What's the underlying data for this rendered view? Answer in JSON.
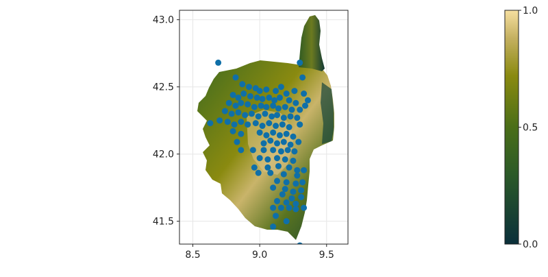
{
  "chart_data": {
    "type": "scatter",
    "title": "",
    "xlabel": "",
    "ylabel": "",
    "xlim": [
      8.4,
      9.66
    ],
    "ylim": [
      41.33,
      43.07
    ],
    "xticks": [
      8.5,
      9.0,
      9.5
    ],
    "xtick_labels": [
      "8.5",
      "9.0",
      "9.5"
    ],
    "yticks": [
      41.5,
      42.0,
      42.5,
      43.0
    ],
    "ytick_labels": [
      "41.5",
      "42.0",
      "42.5",
      "43.0"
    ],
    "grid": true,
    "background_raster": "elevation heatmap of Corsica",
    "colormap": {
      "name": "gist_earth-like",
      "colors": [
        "#0a2f3a",
        "#3f6b1f",
        "#8a8a10",
        "#f6dfa0"
      ],
      "range": [
        0.0,
        1.0
      ],
      "ticks": [
        0.0,
        0.5,
        1.0
      ],
      "tick_labels": [
        "0.0",
        "0.5",
        "1.0"
      ]
    },
    "point_color": "#0f6fa8",
    "points": [
      [
        8.69,
        42.68
      ],
      [
        9.3,
        42.68
      ],
      [
        9.32,
        42.57
      ],
      [
        8.82,
        42.57
      ],
      [
        8.87,
        42.52
      ],
      [
        8.92,
        42.5
      ],
      [
        8.97,
        42.49
      ],
      [
        9.0,
        42.47
      ],
      [
        9.05,
        42.48
      ],
      [
        9.12,
        42.47
      ],
      [
        9.16,
        42.5
      ],
      [
        9.2,
        42.45
      ],
      [
        9.26,
        42.47
      ],
      [
        9.33,
        42.45
      ],
      [
        9.36,
        42.4
      ],
      [
        9.34,
        42.36
      ],
      [
        8.8,
        42.44
      ],
      [
        8.84,
        42.42
      ],
      [
        8.88,
        42.45
      ],
      [
        8.93,
        42.43
      ],
      [
        8.98,
        42.42
      ],
      [
        9.02,
        42.41
      ],
      [
        9.07,
        42.42
      ],
      [
        9.11,
        42.4
      ],
      [
        9.15,
        42.42
      ],
      [
        9.22,
        42.4
      ],
      [
        9.27,
        42.38
      ],
      [
        8.77,
        42.38
      ],
      [
        8.82,
        42.36
      ],
      [
        8.86,
        42.38
      ],
      [
        8.91,
        42.37
      ],
      [
        8.96,
        42.35
      ],
      [
        9.01,
        42.36
      ],
      [
        9.05,
        42.35
      ],
      [
        9.1,
        42.36
      ],
      [
        9.14,
        42.34
      ],
      [
        9.19,
        42.35
      ],
      [
        9.24,
        42.33
      ],
      [
        9.3,
        42.33
      ],
      [
        8.74,
        42.32
      ],
      [
        8.79,
        42.3
      ],
      [
        8.84,
        42.31
      ],
      [
        8.89,
        42.29
      ],
      [
        8.94,
        42.3
      ],
      [
        8.99,
        42.28
      ],
      [
        9.04,
        42.3
      ],
      [
        9.09,
        42.28
      ],
      [
        9.13,
        42.29
      ],
      [
        9.18,
        42.27
      ],
      [
        9.23,
        42.28
      ],
      [
        9.28,
        42.27
      ],
      [
        8.63,
        42.23
      ],
      [
        8.7,
        42.25
      ],
      [
        8.76,
        42.24
      ],
      [
        8.81,
        42.22
      ],
      [
        8.86,
        42.24
      ],
      [
        8.91,
        42.22
      ],
      [
        8.97,
        42.23
      ],
      [
        9.02,
        42.21
      ],
      [
        9.07,
        42.23
      ],
      [
        9.12,
        42.21
      ],
      [
        9.17,
        42.22
      ],
      [
        9.22,
        42.2
      ],
      [
        9.3,
        42.22
      ],
      [
        8.8,
        42.17
      ],
      [
        8.86,
        42.15
      ],
      [
        9.0,
        42.16
      ],
      [
        9.05,
        42.14
      ],
      [
        9.1,
        42.16
      ],
      [
        9.15,
        42.14
      ],
      [
        9.2,
        42.15
      ],
      [
        9.25,
        42.13
      ],
      [
        8.83,
        42.09
      ],
      [
        9.03,
        42.08
      ],
      [
        9.08,
        42.1
      ],
      [
        9.13,
        42.08
      ],
      [
        9.18,
        42.09
      ],
      [
        9.23,
        42.07
      ],
      [
        9.29,
        42.09
      ],
      [
        8.86,
        42.03
      ],
      [
        8.95,
        42.03
      ],
      [
        9.03,
        42.03
      ],
      [
        9.1,
        42.03
      ],
      [
        9.16,
        42.02
      ],
      [
        9.21,
        42.03
      ],
      [
        9.26,
        42.02
      ],
      [
        9.0,
        41.97
      ],
      [
        9.06,
        41.96
      ],
      [
        9.13,
        41.97
      ],
      [
        9.19,
        41.96
      ],
      [
        9.25,
        41.95
      ],
      [
        8.96,
        41.9
      ],
      [
        9.06,
        41.9
      ],
      [
        9.14,
        41.91
      ],
      [
        9.22,
        41.9
      ],
      [
        9.28,
        41.88
      ],
      [
        9.33,
        41.88
      ],
      [
        8.99,
        41.86
      ],
      [
        9.08,
        41.86
      ],
      [
        9.18,
        41.85
      ],
      [
        9.28,
        41.84
      ],
      [
        9.13,
        41.8
      ],
      [
        9.2,
        41.79
      ],
      [
        9.27,
        41.78
      ],
      [
        9.32,
        41.79
      ],
      [
        9.1,
        41.75
      ],
      [
        9.19,
        41.74
      ],
      [
        9.25,
        41.72
      ],
      [
        9.31,
        41.73
      ],
      [
        9.17,
        41.7
      ],
      [
        9.24,
        41.67
      ],
      [
        9.31,
        41.68
      ],
      [
        9.13,
        41.65
      ],
      [
        9.2,
        41.64
      ],
      [
        9.27,
        41.63
      ],
      [
        9.1,
        41.6
      ],
      [
        9.16,
        41.6
      ],
      [
        9.22,
        41.6
      ],
      [
        9.27,
        41.59
      ],
      [
        9.33,
        41.6
      ],
      [
        9.12,
        41.54
      ],
      [
        9.2,
        41.5
      ],
      [
        9.1,
        41.46
      ],
      [
        9.3,
        41.32
      ]
    ]
  }
}
